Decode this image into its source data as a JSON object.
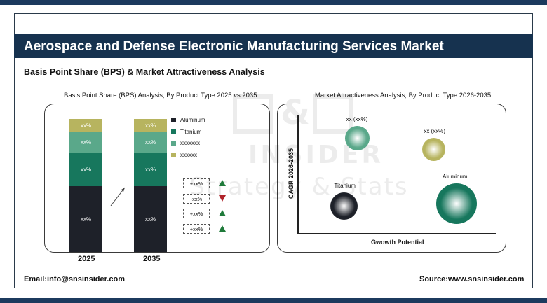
{
  "header": {
    "title": "Aerospace and Defense Electronic Manufacturing Services Market",
    "subtitle": "Basis Point Share (BPS) & Market Attractiveness Analysis"
  },
  "watermark": {
    "line1": "J&Q",
    "line2": "INSIDER",
    "line3": "Strategy & Stats"
  },
  "chart_data": [
    {
      "type": "bar",
      "title": "Basis Point Share (BPS) Analysis, By Product Type 2025 vs 2035",
      "categories": [
        "2025",
        "2035"
      ],
      "series": [
        {
          "name": "Aluminum",
          "color": "#1e2129",
          "share": [
            0.48,
            0.48
          ],
          "labels": [
            "xx%",
            "xx%"
          ]
        },
        {
          "name": "Titanium",
          "color": "#17775d",
          "share": [
            0.24,
            0.24
          ],
          "labels": [
            "xx%",
            "xx%"
          ]
        },
        {
          "name": "xxxxxxx",
          "color": "#5aa88a",
          "share": [
            0.16,
            0.16
          ],
          "labels": [
            "xx%",
            "xx%"
          ]
        },
        {
          "name": "xxxxxx",
          "color": "#b7b45f",
          "share": [
            0.09,
            0.09
          ],
          "labels": [
            "xx%",
            "xx%"
          ]
        }
      ],
      "changes": [
        {
          "label": "+xx%",
          "direction": "up"
        },
        {
          "label": "-xx%",
          "direction": "down"
        },
        {
          "label": "+xx%",
          "direction": "up"
        },
        {
          "label": "+xx%",
          "direction": "up"
        }
      ],
      "colors": {
        "up": "#1f7a3a",
        "down": "#b0232a"
      }
    },
    {
      "type": "scatter",
      "title": "Market Attractiveness Analysis, By Product Type 2026-2035",
      "xlabel": "Gwowth Potential",
      "ylabel": "CAGR 2026-2035",
      "points": [
        {
          "label": "xx (xx%)",
          "x": 0.3,
          "y": 0.82,
          "size": 0.6,
          "color": "#5aa88a"
        },
        {
          "label": "xx (xx%)",
          "x": 0.7,
          "y": 0.72,
          "size": 0.58,
          "color": "#b7b45f"
        },
        {
          "label": "Titanium",
          "x": 0.23,
          "y": 0.22,
          "size": 0.68,
          "color": "#1e2129"
        },
        {
          "label": "Aluminum",
          "x": 0.82,
          "y": 0.24,
          "size": 1.0,
          "color": "#17775d"
        }
      ]
    }
  ],
  "footer": {
    "email": "Email:info@snsinsider.com",
    "source": "Source:www.snsinsider.com"
  }
}
